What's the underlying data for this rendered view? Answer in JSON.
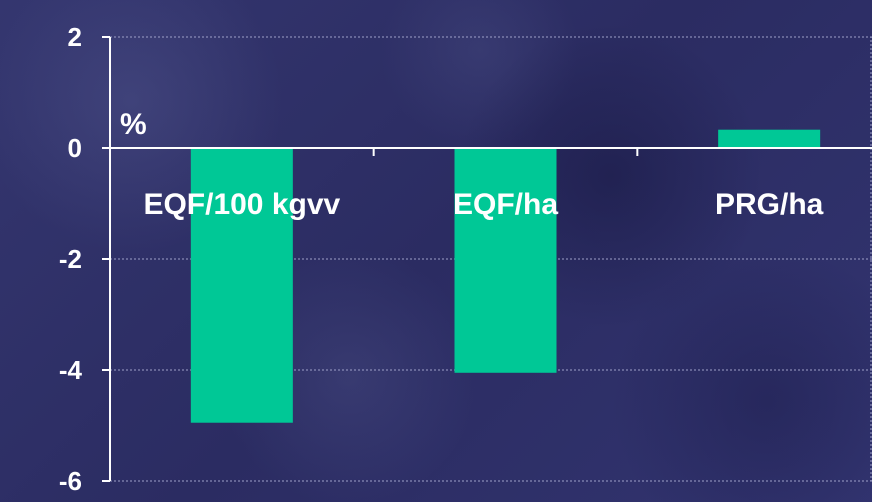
{
  "chart_data": {
    "type": "bar",
    "categories": [
      "EQF/100 kgvv",
      "EQF/ha",
      "PRG/ha"
    ],
    "values": [
      -4.95,
      -4.05,
      0.33
    ],
    "unit_label": "%",
    "ylim": [
      -6,
      2
    ],
    "yticks": [
      2,
      0,
      -2,
      -4,
      -6
    ],
    "grid": true,
    "bar_color": "#00c896"
  }
}
